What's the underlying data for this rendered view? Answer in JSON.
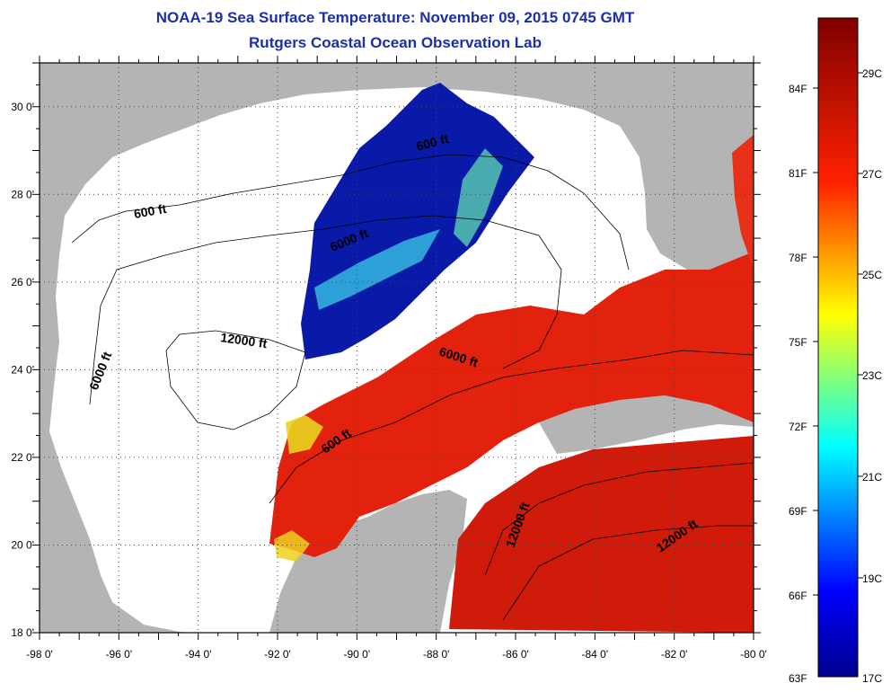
{
  "header": {
    "title": "NOAA-19 Sea Surface Temperature:  November 09, 2015 0745 GMT",
    "subtitle": "Rutgers Coastal Ocean Observation Lab"
  },
  "axes": {
    "lon_ticks": [
      "-98 0'",
      "-96 0'",
      "-94 0'",
      "-92 0'",
      "-90 0'",
      "-88 0'",
      "-86 0'",
      "-84 0'",
      "-82 0'",
      "-80 0'"
    ],
    "lat_ticks": [
      "30 0'",
      "28 0'",
      "26 0'",
      "24 0'",
      "22 0'",
      "20 0'",
      "18 0'"
    ],
    "lon_range": [
      -98,
      -80
    ],
    "lat_range": [
      18,
      31
    ]
  },
  "contour_labels": [
    {
      "text": "600 ft"
    },
    {
      "text": "600 ft"
    },
    {
      "text": "6000 ft"
    },
    {
      "text": "6000 ft"
    },
    {
      "text": "12000 ft"
    },
    {
      "text": "6000 ft"
    },
    {
      "text": "600 ft"
    },
    {
      "text": "12000 ft"
    },
    {
      "text": "12000 ft"
    }
  ],
  "colorbar": {
    "fahrenheit": [
      "84F",
      "81F",
      "78F",
      "75F",
      "72F",
      "69F",
      "66F",
      "63F"
    ],
    "celsius": [
      "29C",
      "27C",
      "25C",
      "23C",
      "21C",
      "19C",
      "17C"
    ]
  },
  "colors": {
    "title": "#1c2fa8",
    "land": "#b4b4b4",
    "no_data": "#ffffff",
    "warm": "#e3220e",
    "cold": "#0a1aa8"
  }
}
